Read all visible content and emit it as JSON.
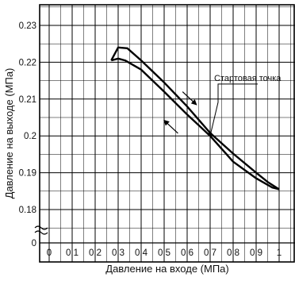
{
  "chart_data": {
    "type": "line",
    "xlabel": "Давление на входе (МПа)",
    "ylabel": "Давление на выходе (МПа)",
    "xlim": [
      0,
      1.05
    ],
    "ylim": [
      0.17,
      0.235
    ],
    "x_ticks": [
      "0",
      "0.1",
      "0.2",
      "0.3",
      "0.4",
      "0.5",
      "0.6",
      "0.7",
      "0.8",
      "0.9",
      "1"
    ],
    "y_ticks": [
      "0.23",
      "0.22",
      "0.21",
      "0.2",
      "0.19",
      "0.18"
    ],
    "y_break_label": "0",
    "grid": true,
    "series": [
      {
        "x": [
          0.27,
          0.3,
          0.34,
          0.4,
          0.5,
          0.6,
          0.7,
          0.8,
          0.9,
          0.95,
          1.0
        ],
        "y": [
          0.2205,
          0.224,
          0.2238,
          0.2205,
          0.2145,
          0.208,
          0.2008,
          0.1952,
          0.19,
          0.1875,
          0.1855
        ]
      },
      {
        "x": [
          0.27,
          0.3,
          0.33,
          0.4,
          0.5,
          0.6,
          0.7,
          0.8,
          0.9,
          0.97,
          1.0
        ],
        "y": [
          0.2205,
          0.221,
          0.2205,
          0.218,
          0.212,
          0.2058,
          0.2,
          0.193,
          0.1885,
          0.186,
          0.1855
        ]
      }
    ],
    "annotations": [
      {
        "text": "Стартовая точка",
        "x": 0.7,
        "y": 0.2005
      }
    ]
  }
}
